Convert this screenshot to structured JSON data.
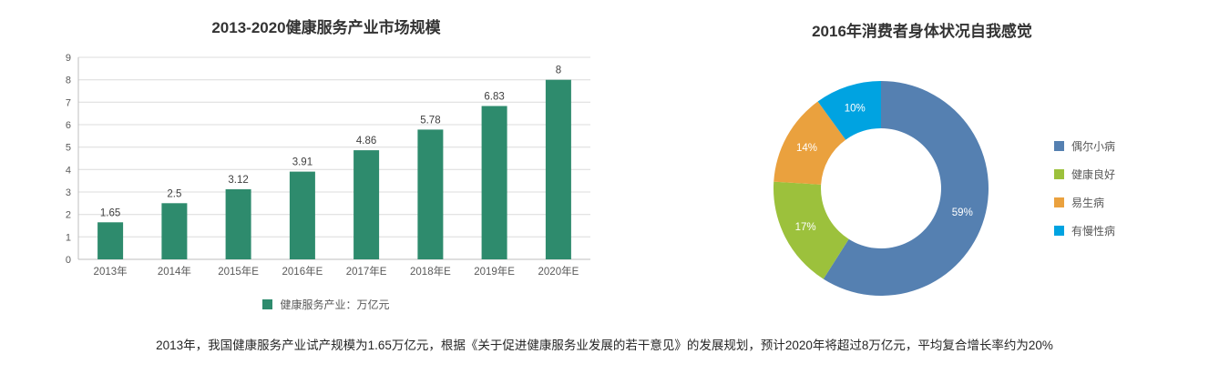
{
  "page": {
    "bottom_note": "2013年，我国健康服务产业试产规模为1.65万亿元，根据《关于促进健康服务业发展的若干意见》的发展规划，预计2020年将超过8万亿元，平均复合增长率约为20%"
  },
  "chart_data": [
    {
      "type": "bar",
      "title": "2013-2020健康服务产业市场规模",
      "categories": [
        "2013年",
        "2014年",
        "2015年E",
        "2016年E",
        "2017年E",
        "2018年E",
        "2019年E",
        "2020年E"
      ],
      "values": [
        1.65,
        2.5,
        3.12,
        3.91,
        4.86,
        5.78,
        6.83,
        8
      ],
      "value_labels": [
        "1.65",
        "2.5",
        "3.12",
        "3.91",
        "4.86",
        "5.78",
        "6.83",
        "8"
      ],
      "ylabel": "",
      "xlabel": "",
      "ylim": [
        0,
        9
      ],
      "y_ticks": [
        0,
        1,
        2,
        3,
        4,
        5,
        6,
        7,
        8,
        9
      ],
      "grid": true,
      "bar_color": "#2e8b6d",
      "legend_position": "bottom",
      "legend": [
        {
          "label": "健康服务产业：万亿元",
          "color": "#2e8b6d"
        }
      ]
    },
    {
      "type": "pie",
      "title": "2016年消费者身体状况自我感觉",
      "donut": true,
      "start_angle_deg": 0,
      "direction": "clockwise",
      "legend_position": "right",
      "slices": [
        {
          "label": "偶尔小病",
          "value": 59,
          "pct_label": "59%",
          "color": "#5580b1"
        },
        {
          "label": "健康良好",
          "value": 17,
          "pct_label": "17%",
          "color": "#9cc13c"
        },
        {
          "label": "易生病",
          "value": 14,
          "pct_label": "14%",
          "color": "#eaa13e"
        },
        {
          "label": "有慢性病",
          "value": 10,
          "pct_label": "10%",
          "color": "#00a3e1"
        }
      ]
    }
  ]
}
